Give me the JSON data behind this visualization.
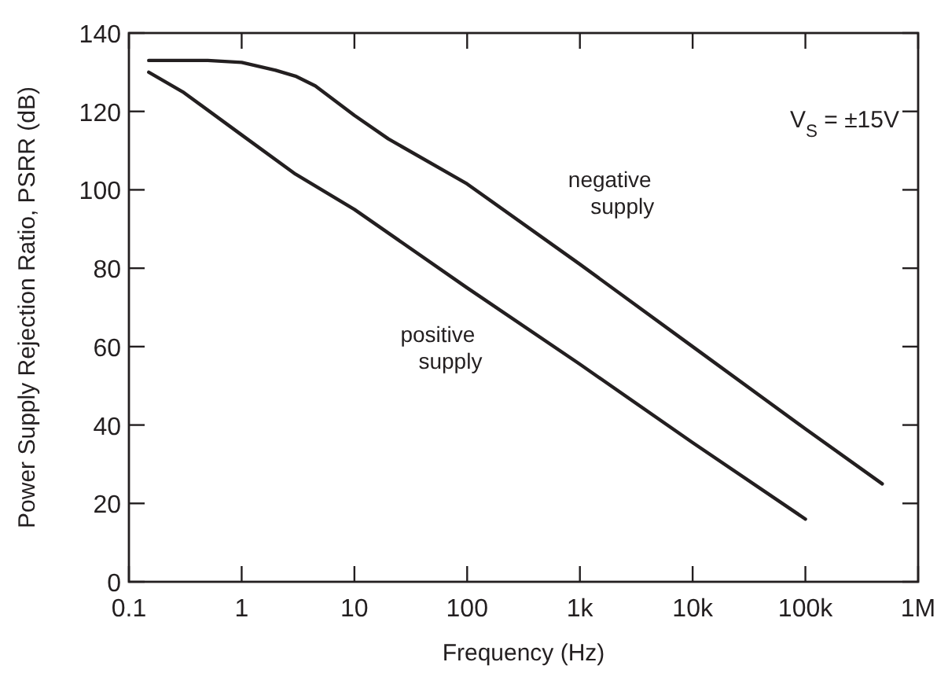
{
  "chart_data": {
    "type": "line",
    "xlabel": "Frequency (Hz)",
    "ylabel": "Power Supply Rejection Ratio, PSRR (dB)",
    "annotations": [
      "V$_{S}$ = ±15V"
    ],
    "log": "x",
    "xlim": [
      0.1,
      1000000
    ],
    "xticks": [
      0.1,
      1,
      10,
      100,
      {
        "value": 1000,
        "label": "1k"
      },
      {
        "value": 10000,
        "label": "10k"
      },
      {
        "value": 100000,
        "label": "100k"
      },
      {
        "value": 1000000,
        "label": "1M"
      }
    ],
    "ylim": [
      0,
      140
    ],
    "yticks": [
      0,
      20,
      40,
      60,
      80,
      100,
      120,
      140
    ],
    "grid": false,
    "legend": false,
    "marker": "none",
    "line_style": "solid",
    "series": [
      {
        "name": "negative supply",
        "color": "#231f20",
        "x": [
          0.15,
          0.5,
          1,
          2,
          3,
          4.5,
          10,
          20,
          100,
          1000,
          10000,
          100000,
          480000
        ],
        "values": [
          133,
          133,
          132.5,
          130.5,
          129,
          126.5,
          119,
          113,
          101.5,
          81,
          60,
          39,
          25
        ]
      },
      {
        "name": "positive supply",
        "color": "#231f20",
        "x": [
          0.15,
          0.3,
          1,
          3,
          10,
          100,
          1000,
          10000,
          100000
        ],
        "values": [
          130,
          125,
          114,
          104,
          95,
          75,
          55.5,
          35.5,
          16
        ]
      }
    ]
  }
}
